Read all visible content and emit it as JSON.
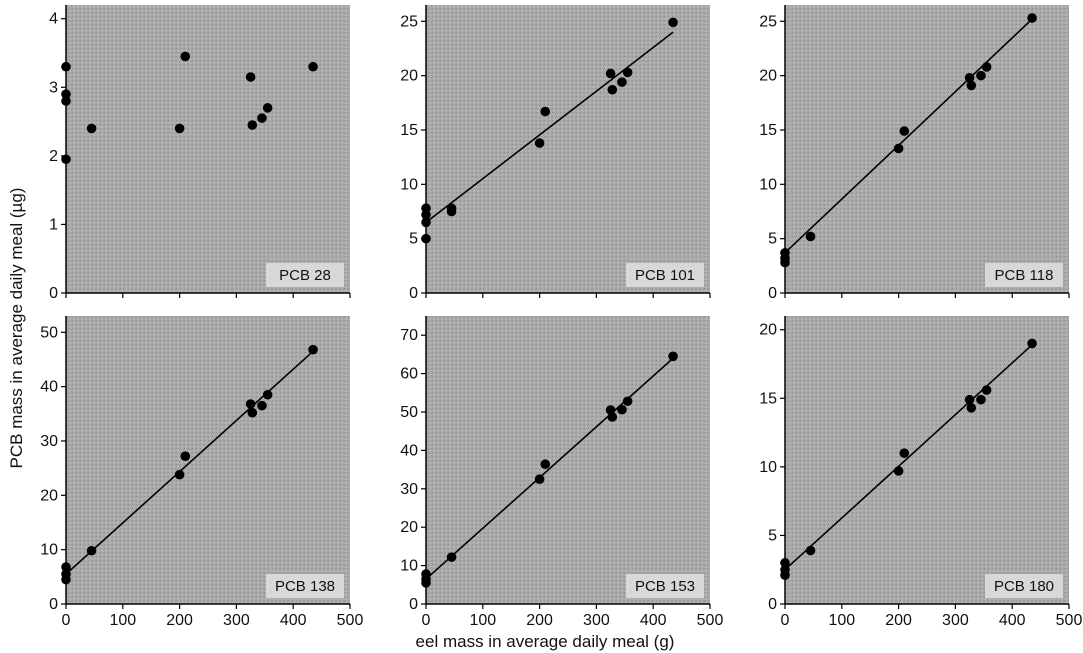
{
  "figure": {
    "ylabel": "PCB mass in average daily meal (µg)",
    "xlabel": "eel mass in average daily meal (g)"
  },
  "colors": {
    "panel_bg": "#a9a9a9",
    "label_bg": "#d8d8d8",
    "point": "#000000",
    "line": "#000000"
  },
  "chart_data": [
    {
      "type": "scatter",
      "label": "PCB 28",
      "xlim": [
        0,
        500
      ],
      "ylim": [
        0,
        4.2
      ],
      "xticks": [
        0,
        100,
        200,
        300,
        400,
        500
      ],
      "yticks": [
        0,
        1,
        2,
        3,
        4
      ],
      "show_xticks": false,
      "fit_line": null,
      "points": [
        [
          0,
          3.3
        ],
        [
          0,
          2.9
        ],
        [
          0,
          2.8
        ],
        [
          0,
          1.95
        ],
        [
          45,
          2.4
        ],
        [
          200,
          2.4
        ],
        [
          210,
          3.45
        ],
        [
          325,
          3.15
        ],
        [
          328,
          2.45
        ],
        [
          345,
          2.55
        ],
        [
          355,
          2.7
        ],
        [
          435,
          3.3
        ]
      ]
    },
    {
      "type": "scatter",
      "label": "PCB 101",
      "xlim": [
        0,
        500
      ],
      "ylim": [
        0,
        26.5
      ],
      "xticks": [
        0,
        100,
        200,
        300,
        400,
        500
      ],
      "yticks": [
        0,
        5,
        10,
        15,
        20,
        25
      ],
      "show_xticks": false,
      "fit_line": [
        [
          0,
          6.5
        ],
        [
          435,
          24
        ]
      ],
      "points": [
        [
          0,
          7.8
        ],
        [
          0,
          7.2
        ],
        [
          0,
          6.5
        ],
        [
          0,
          5.0
        ],
        [
          45,
          7.8
        ],
        [
          45,
          7.5
        ],
        [
          200,
          13.8
        ],
        [
          210,
          16.7
        ],
        [
          325,
          20.2
        ],
        [
          328,
          18.7
        ],
        [
          345,
          19.4
        ],
        [
          355,
          20.3
        ],
        [
          435,
          24.9
        ]
      ]
    },
    {
      "type": "scatter",
      "label": "PCB 118",
      "xlim": [
        0,
        500
      ],
      "ylim": [
        0,
        26.5
      ],
      "xticks": [
        0,
        100,
        200,
        300,
        400,
        500
      ],
      "yticks": [
        0,
        5,
        10,
        15,
        20,
        25
      ],
      "show_xticks": false,
      "fit_line": [
        [
          0,
          3.7
        ],
        [
          435,
          25.2
        ]
      ],
      "points": [
        [
          0,
          3.7
        ],
        [
          0,
          3.2
        ],
        [
          0,
          2.8
        ],
        [
          45,
          5.2
        ],
        [
          200,
          13.3
        ],
        [
          210,
          14.9
        ],
        [
          325,
          19.8
        ],
        [
          328,
          19.1
        ],
        [
          345,
          20.0
        ],
        [
          355,
          20.8
        ],
        [
          435,
          25.3
        ]
      ]
    },
    {
      "type": "scatter",
      "label": "PCB 138",
      "xlim": [
        0,
        500
      ],
      "ylim": [
        0,
        53
      ],
      "xticks": [
        0,
        100,
        200,
        300,
        400,
        500
      ],
      "yticks": [
        0,
        10,
        20,
        30,
        40,
        50
      ],
      "show_xticks": true,
      "fit_line": [
        [
          0,
          5.5
        ],
        [
          435,
          46.5
        ]
      ],
      "points": [
        [
          0,
          6.8
        ],
        [
          0,
          5.5
        ],
        [
          0,
          4.5
        ],
        [
          45,
          9.8
        ],
        [
          200,
          23.8
        ],
        [
          210,
          27.2
        ],
        [
          325,
          36.8
        ],
        [
          328,
          35.2
        ],
        [
          345,
          36.5
        ],
        [
          355,
          38.5
        ],
        [
          435,
          46.8
        ]
      ]
    },
    {
      "type": "scatter",
      "label": "PCB 153",
      "xlim": [
        0,
        500
      ],
      "ylim": [
        0,
        75
      ],
      "xticks": [
        0,
        100,
        200,
        300,
        400,
        500
      ],
      "yticks": [
        0,
        10,
        20,
        30,
        40,
        50,
        60,
        70
      ],
      "show_xticks": true,
      "fit_line": [
        [
          0,
          6.5
        ],
        [
          435,
          64
        ]
      ],
      "points": [
        [
          0,
          7.8
        ],
        [
          0,
          6.5
        ],
        [
          0,
          5.5
        ],
        [
          45,
          12.2
        ],
        [
          200,
          32.5
        ],
        [
          210,
          36.4
        ],
        [
          325,
          50.5
        ],
        [
          328,
          48.7
        ],
        [
          345,
          50.6
        ],
        [
          355,
          52.8
        ],
        [
          435,
          64.5
        ]
      ]
    },
    {
      "type": "scatter",
      "label": "PCB 180",
      "xlim": [
        0,
        500
      ],
      "ylim": [
        0,
        21
      ],
      "xticks": [
        0,
        100,
        200,
        300,
        400,
        500
      ],
      "yticks": [
        0,
        5,
        10,
        15,
        20
      ],
      "show_xticks": true,
      "fit_line": [
        [
          0,
          2.5
        ],
        [
          435,
          18.9
        ]
      ],
      "points": [
        [
          0,
          3.0
        ],
        [
          0,
          2.5
        ],
        [
          0,
          2.1
        ],
        [
          45,
          3.9
        ],
        [
          200,
          9.7
        ],
        [
          210,
          11.0
        ],
        [
          325,
          14.9
        ],
        [
          328,
          14.3
        ],
        [
          345,
          14.9
        ],
        [
          355,
          15.6
        ],
        [
          435,
          19.0
        ]
      ]
    }
  ]
}
